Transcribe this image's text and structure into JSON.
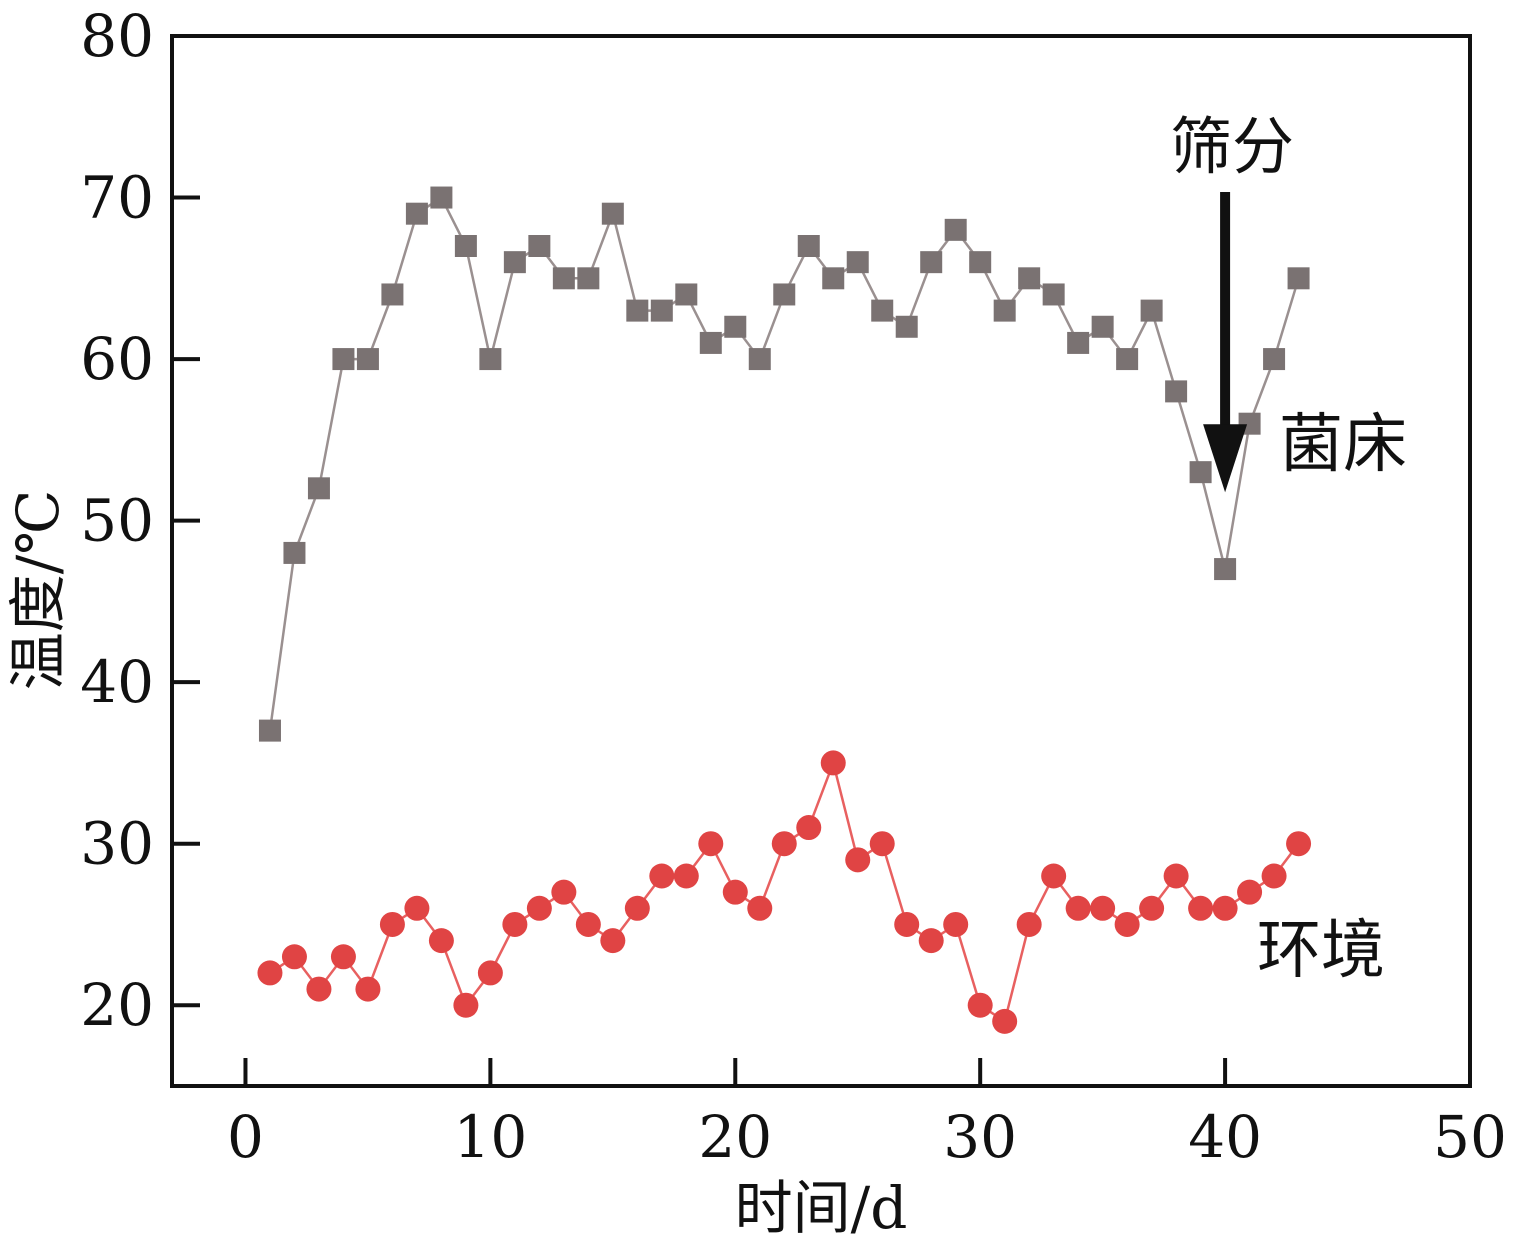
{
  "chart_data": {
    "type": "line",
    "xlabel": "时间/d",
    "ylabel": "温度/℃",
    "xlim": [
      -3,
      50
    ],
    "ylim": [
      15,
      80
    ],
    "xticks": [
      0,
      10,
      20,
      30,
      40,
      50
    ],
    "yticks": [
      20,
      30,
      40,
      50,
      60,
      70,
      80
    ],
    "grid": false,
    "x": [
      1,
      2,
      3,
      4,
      5,
      6,
      7,
      8,
      9,
      10,
      11,
      12,
      13,
      14,
      15,
      16,
      17,
      18,
      19,
      20,
      21,
      22,
      23,
      24,
      25,
      26,
      27,
      28,
      29,
      30,
      31,
      32,
      33,
      34,
      35,
      36,
      37,
      38,
      39,
      40,
      41,
      42,
      43
    ],
    "series": [
      {
        "name": "菌床",
        "marker": "square",
        "color": "#7a7272",
        "line_color": "#9a9090",
        "values": [
          37,
          48,
          52,
          60,
          60,
          64,
          69,
          70,
          67,
          60,
          66,
          67,
          65,
          65,
          69,
          63,
          63,
          64,
          61,
          62,
          60,
          64,
          67,
          65,
          66,
          63,
          62,
          66,
          68,
          66,
          63,
          65,
          64,
          61,
          62,
          60,
          63,
          58,
          53,
          47,
          56,
          60,
          65
        ]
      },
      {
        "name": "环境",
        "marker": "circle",
        "color": "#e04444",
        "line_color": "#e86060",
        "values": [
          22,
          23,
          21,
          23,
          21,
          25,
          26,
          24,
          20,
          22,
          25,
          26,
          27,
          25,
          24,
          26,
          28,
          28,
          30,
          27,
          26,
          30,
          31,
          35,
          29,
          30,
          25,
          24,
          25,
          20,
          19,
          25,
          28,
          26,
          26,
          25,
          26,
          28,
          26,
          26,
          27,
          28,
          30
        ]
      }
    ],
    "annotation": {
      "text": "筛分",
      "x": 40,
      "arrow_from_y": 72,
      "arrow_to_y": 52
    }
  }
}
